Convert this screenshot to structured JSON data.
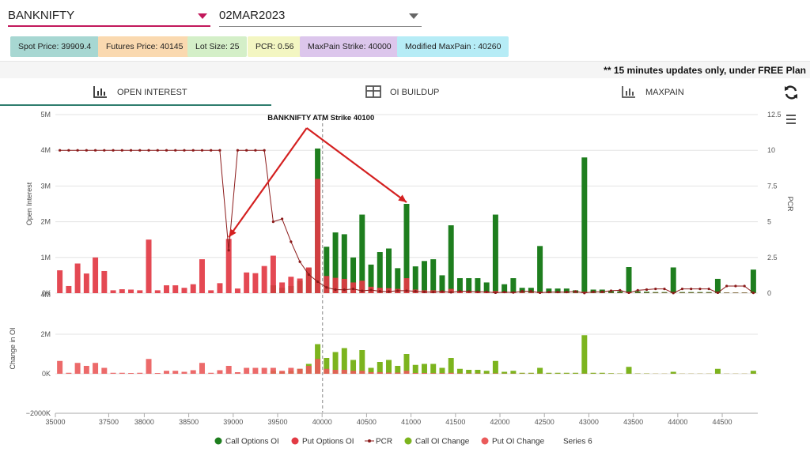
{
  "selectors": {
    "symbol": "BANKNIFTY",
    "expiry": "02MAR2023"
  },
  "chips": [
    {
      "label": "Spot Price: 39909.4",
      "color": "#a7d7d2"
    },
    {
      "label": "Futures Price: 40145",
      "color": "#fad9b0"
    },
    {
      "label": "Lot Size: 25",
      "color": "#d4efc8"
    },
    {
      "label": "PCR: 0.56",
      "color": "#f3f6c2"
    },
    {
      "label": "MaxPain Strike: 40000",
      "color": "#dcc6ec"
    },
    {
      "label": "Modified MaxPain : 40260",
      "color": "#b6ecf6"
    }
  ],
  "notice": "** 15 minutes updates only, under FREE Plan",
  "tabs": {
    "open_interest": "OPEN INTEREST",
    "oi_buildup": "OI BUILDUP",
    "maxpain": "MAXPAIN"
  },
  "chart_data": {
    "type": "bar",
    "annotation": "BANKNIFTY ATM Strike 40100",
    "atm_strike": 40100,
    "colors": {
      "call_oi": "#1e7e1e",
      "put_oi": "#e23a44",
      "pcr": "#8b1a1a",
      "call_change": "#7cb41e",
      "put_change": "#ea5a5a",
      "annotation_arrow": "#d42020"
    },
    "x_ticks": [
      "35000",
      "37500",
      "38000",
      "38500",
      "39000",
      "39500",
      "40000",
      "40500",
      "41000",
      "41500",
      "42000",
      "42500",
      "43000",
      "43500",
      "44000",
      "44500"
    ],
    "strikes": [
      35000,
      35500,
      36000,
      36500,
      37000,
      37500,
      37700,
      37800,
      37900,
      38000,
      38100,
      38200,
      38300,
      38400,
      38500,
      38600,
      38700,
      38800,
      38900,
      39000,
      39100,
      39200,
      39300,
      39400,
      39500,
      39600,
      39700,
      39800,
      39900,
      40000,
      40100,
      40200,
      40300,
      40400,
      40500,
      40600,
      40700,
      40800,
      40900,
      41000,
      41100,
      41200,
      41300,
      41400,
      41500,
      41600,
      41700,
      41800,
      41900,
      42000,
      42100,
      42200,
      42300,
      42400,
      42500,
      42600,
      42700,
      42800,
      42900,
      43000,
      43100,
      43200,
      43300,
      43400,
      43500,
      43600,
      43700,
      43800,
      43900,
      44000,
      44100,
      44200,
      44300,
      44400,
      44500,
      44600,
      44700,
      44800,
      44900
    ],
    "oi_axis": {
      "label": "Open Interest",
      "ticks": [
        "0K",
        "1M",
        "2M",
        "3M",
        "4M",
        "5M"
      ],
      "max": 5000000
    },
    "pcr_axis": {
      "label": "PCR",
      "ticks": [
        "0",
        "2.5",
        "5",
        "7.5",
        "10",
        "12.5"
      ],
      "max": 12.5
    },
    "change_axis": {
      "label": "Change in OI",
      "ticks": [
        "-2000K",
        "0K",
        "2M",
        "4M"
      ],
      "min": -2000000,
      "max": 4000000
    },
    "series": [
      {
        "name": "Call Options OI",
        "values": [
          0,
          0,
          0,
          0,
          0,
          0,
          0,
          0,
          0,
          0,
          0,
          0,
          0,
          0,
          0,
          0,
          0,
          0,
          0,
          0,
          0,
          0,
          0,
          0,
          220000,
          150000,
          200000,
          350000,
          700000,
          4050000,
          1300000,
          1700000,
          1650000,
          1000000,
          2200000,
          800000,
          1150000,
          1250000,
          700000,
          2500000,
          750000,
          900000,
          950000,
          500000,
          1900000,
          420000,
          420000,
          420000,
          300000,
          2200000,
          250000,
          420000,
          150000,
          150000,
          1320000,
          130000,
          130000,
          130000,
          80000,
          3800000,
          100000,
          100000,
          60000,
          50000,
          730000,
          50000,
          40000,
          30000,
          30000,
          720000,
          30000,
          30000,
          30000,
          30000,
          400000,
          20000,
          20000,
          20000,
          660000
        ]
      },
      {
        "name": "Put Options OI",
        "values": [
          640000,
          200000,
          830000,
          550000,
          1000000,
          620000,
          80000,
          110000,
          100000,
          80000,
          1500000,
          80000,
          220000,
          220000,
          150000,
          250000,
          950000,
          80000,
          280000,
          1520000,
          130000,
          580000,
          560000,
          760000,
          1050000,
          300000,
          460000,
          410000,
          720000,
          3200000,
          480000,
          430000,
          400000,
          300000,
          350000,
          180000,
          150000,
          140000,
          120000,
          420000,
          100000,
          80000,
          80000,
          60000,
          120000,
          60000,
          50000,
          40000,
          30000,
          60000,
          20000,
          20000,
          20000,
          20000,
          40000,
          10000,
          10000,
          10000,
          10000,
          40000,
          10000,
          10000,
          10000,
          10000,
          20000,
          10000,
          10000,
          10000,
          10000,
          10000,
          10000,
          10000,
          10000,
          10000,
          10000,
          10000,
          10000,
          10000,
          10000
        ]
      },
      {
        "name": "PCR",
        "values": [
          10,
          10,
          10,
          10,
          10,
          10,
          10,
          10,
          10,
          10,
          10,
          10,
          10,
          10,
          10,
          10,
          10,
          10,
          10,
          3,
          10,
          10,
          10,
          10,
          5,
          5.2,
          3.6,
          2.2,
          1.3,
          0.8,
          0.4,
          0.25,
          0.24,
          0.3,
          0.16,
          0.22,
          0.13,
          0.11,
          0.17,
          0.17,
          0.13,
          0.09,
          0.08,
          0.12,
          0.06,
          0.14,
          0.12,
          0.1,
          0.1,
          0.03,
          0.08,
          0.05,
          0.13,
          0.13,
          0.03,
          0.08,
          0.08,
          0.08,
          0.12,
          0.01,
          0.1,
          0.1,
          0.17,
          0.2,
          0.03,
          0.2,
          0.25,
          0.3,
          0.3,
          0.01,
          0.3,
          0.3,
          0.3,
          0.3,
          0.03,
          0.5,
          0.5,
          0.5,
          0.02
        ]
      },
      {
        "name": "Call OI Change",
        "values": [
          0,
          0,
          0,
          0,
          0,
          0,
          0,
          0,
          0,
          0,
          0,
          0,
          0,
          0,
          0,
          0,
          0,
          0,
          0,
          0,
          0,
          0,
          0,
          0,
          150000,
          100000,
          150000,
          250000,
          500000,
          1500000,
          800000,
          1100000,
          1300000,
          700000,
          1200000,
          300000,
          600000,
          700000,
          400000,
          1000000,
          450000,
          500000,
          500000,
          300000,
          800000,
          250000,
          200000,
          200000,
          150000,
          650000,
          100000,
          150000,
          50000,
          50000,
          300000,
          50000,
          50000,
          50000,
          50000,
          1950000,
          50000,
          50000,
          30000,
          20000,
          350000,
          20000,
          20000,
          10000,
          10000,
          100000,
          10000,
          10000,
          10000,
          10000,
          250000,
          10000,
          10000,
          10000,
          150000
        ]
      },
      {
        "name": "Put OI Change",
        "values": [
          650000,
          50000,
          550000,
          400000,
          550000,
          300000,
          50000,
          50000,
          40000,
          50000,
          750000,
          40000,
          150000,
          150000,
          100000,
          180000,
          550000,
          50000,
          180000,
          400000,
          80000,
          300000,
          300000,
          300000,
          300000,
          150000,
          300000,
          250000,
          400000,
          750000,
          250000,
          200000,
          200000,
          150000,
          150000,
          80000,
          80000,
          60000,
          60000,
          150000,
          40000,
          40000,
          30000,
          30000,
          50000,
          20000,
          20000,
          20000,
          10000,
          20000,
          10000,
          10000,
          10000,
          10000,
          10000,
          5000,
          5000,
          5000,
          5000,
          10000,
          5000,
          5000,
          5000,
          5000,
          5000,
          5000,
          5000,
          5000,
          5000,
          5000,
          5000,
          5000,
          5000,
          5000,
          5000,
          5000,
          5000,
          5000,
          5000
        ]
      }
    ],
    "legend": [
      "Call Options OI",
      "Put Options OI",
      "PCR",
      "Call OI Change",
      "Put OI Change",
      "Series 6"
    ]
  }
}
